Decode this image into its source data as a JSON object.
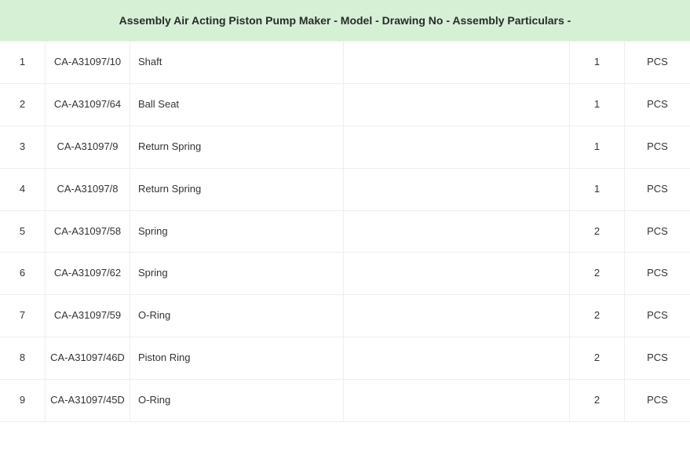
{
  "header_title": "Assembly Air Acting Piston Pump Maker - Model - Drawing No - Assembly Particulars -",
  "colors": {
    "header_bg": "#d6f0d6",
    "border": "#eeeeee",
    "text": "#333333",
    "background": "#ffffff"
  },
  "columns": [
    "index",
    "code",
    "name",
    "blank",
    "qty",
    "unit"
  ],
  "rows": [
    {
      "index": "1",
      "code": "CA-A31097/10",
      "name": "Shaft",
      "blank": "",
      "qty": "1",
      "unit": "PCS"
    },
    {
      "index": "2",
      "code": "CA-A31097/64",
      "name": "Ball Seat",
      "blank": "",
      "qty": "1",
      "unit": "PCS"
    },
    {
      "index": "3",
      "code": "CA-A31097/9",
      "name": "Return Spring",
      "blank": "",
      "qty": "1",
      "unit": "PCS"
    },
    {
      "index": "4",
      "code": "CA-A31097/8",
      "name": "Return Spring",
      "blank": "",
      "qty": "1",
      "unit": "PCS"
    },
    {
      "index": "5",
      "code": "CA-A31097/58",
      "name": "Spring",
      "blank": "",
      "qty": "2",
      "unit": "PCS"
    },
    {
      "index": "6",
      "code": "CA-A31097/62",
      "name": "Spring",
      "blank": "",
      "qty": "2",
      "unit": "PCS"
    },
    {
      "index": "7",
      "code": "CA-A31097/59",
      "name": "O-Ring",
      "blank": "",
      "qty": "2",
      "unit": "PCS"
    },
    {
      "index": "8",
      "code": "CA-A31097/46D",
      "name": "Piston Ring",
      "blank": "",
      "qty": "2",
      "unit": "PCS"
    },
    {
      "index": "9",
      "code": "CA-A31097/45D",
      "name": "O-Ring",
      "blank": "",
      "qty": "2",
      "unit": "PCS"
    }
  ]
}
